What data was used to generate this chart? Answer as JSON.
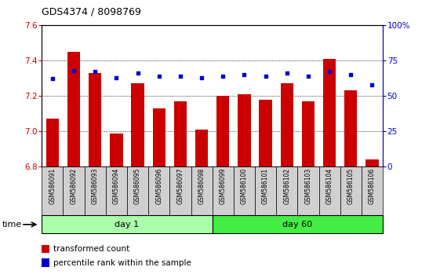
{
  "title": "GDS4374 / 8098769",
  "samples": [
    "GSM586091",
    "GSM586092",
    "GSM586093",
    "GSM586094",
    "GSM586095",
    "GSM586096",
    "GSM586097",
    "GSM586098",
    "GSM586099",
    "GSM586100",
    "GSM586101",
    "GSM586102",
    "GSM586103",
    "GSM586104",
    "GSM586105",
    "GSM586106"
  ],
  "transformed_count": [
    7.07,
    7.45,
    7.33,
    6.99,
    7.27,
    7.13,
    7.17,
    7.01,
    7.2,
    7.21,
    7.18,
    7.27,
    7.17,
    7.41,
    7.23,
    6.84
  ],
  "percentile_rank": [
    62,
    68,
    67,
    63,
    66,
    64,
    64,
    63,
    64,
    65,
    64,
    66,
    64,
    67,
    65,
    58
  ],
  "day1_samples": 8,
  "day60_samples": 8,
  "ylim_left": [
    6.8,
    7.6
  ],
  "ylim_right": [
    0,
    100
  ],
  "yticks_left": [
    6.8,
    7.0,
    7.2,
    7.4,
    7.6
  ],
  "yticks_right": [
    0,
    25,
    50,
    75,
    100
  ],
  "bar_color": "#cc0000",
  "dot_color": "#0000cc",
  "day1_color": "#aaffaa",
  "day60_color": "#44ee44",
  "xticklabel_bg": "#d0d0d0",
  "legend_red_label": "transformed count",
  "legend_blue_label": "percentile rank within the sample",
  "time_label": "time",
  "day1_label": "day 1",
  "day60_label": "day 60"
}
